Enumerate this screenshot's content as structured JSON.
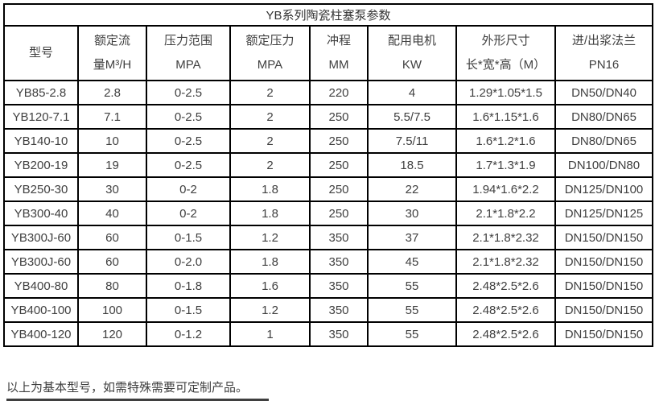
{
  "table": {
    "title": "YB系列陶瓷柱塞泵参数",
    "columns": [
      {
        "line1": "型号",
        "line2": ""
      },
      {
        "line1": "额定流",
        "line2": "量M³/H"
      },
      {
        "line1": "压力范围",
        "line2": "MPA"
      },
      {
        "line1": "额定压力",
        "line2": "MPA"
      },
      {
        "line1": "冲程",
        "line2": "MM"
      },
      {
        "line1": "配用电机",
        "line2": "KW"
      },
      {
        "line1": "外形尺寸",
        "line2": "长*宽*高（M）"
      },
      {
        "line1": "进/出浆法兰",
        "line2": "PN16"
      }
    ],
    "rows": [
      [
        "YB85-2.8",
        "2.8",
        "0-2.5",
        "2",
        "220",
        "4",
        "1.29*1.05*1.5",
        "DN50/DN40"
      ],
      [
        "YB120-7.1",
        "7.1",
        "0-2.5",
        "2",
        "250",
        "5.5/7.5",
        "1.6*1.15*1.6",
        "DN80/DN65"
      ],
      [
        "YB140-10",
        "10",
        "0-2.5",
        "2",
        "250",
        "7.5/11",
        "1.6*1.2*1.6",
        "DN80/DN65"
      ],
      [
        "YB200-19",
        "19",
        "0-2.5",
        "2",
        "250",
        "18.5",
        "1.7*1.3*1.9",
        "DN100/DN80"
      ],
      [
        "YB250-30",
        "30",
        "0-2",
        "1.8",
        "250",
        "22",
        "1.94*1.6*2.2",
        "DN125/DN100"
      ],
      [
        "YB300-40",
        "40",
        "0-2",
        "1.8",
        "250",
        "30",
        "2.1*1.8*2.2",
        "DN125/DN125"
      ],
      [
        "YB300J-60",
        "60",
        "0-1.5",
        "1.2",
        "350",
        "37",
        "2.1*1.8*2.32",
        "DN150/DN150"
      ],
      [
        "YB300J-60",
        "60",
        "0-2.0",
        "1.8",
        "350",
        "45",
        "2.1*1.8*2.32",
        "DN150/DN150"
      ],
      [
        "YB400-80",
        "80",
        "0-1.8",
        "1.6",
        "350",
        "55",
        "2.48*2.5*2.6",
        "DN150/DN150"
      ],
      [
        "YB400-100",
        "100",
        "0-1.5",
        "1.2",
        "350",
        "55",
        "2.48*2.5*2.6",
        "DN150/DN150"
      ],
      [
        "YB400-120",
        "120",
        "0-1.2",
        "1",
        "350",
        "55",
        "2.48*2.5*2.6",
        "DN150/DN150"
      ]
    ]
  },
  "footer": {
    "note": "以上为基本型号，如需特殊需要可定制产品。"
  },
  "colors": {
    "border": "#000000",
    "text": "#404040",
    "background": "#ffffff",
    "cutoff_bar": "#3f3f3f"
  }
}
